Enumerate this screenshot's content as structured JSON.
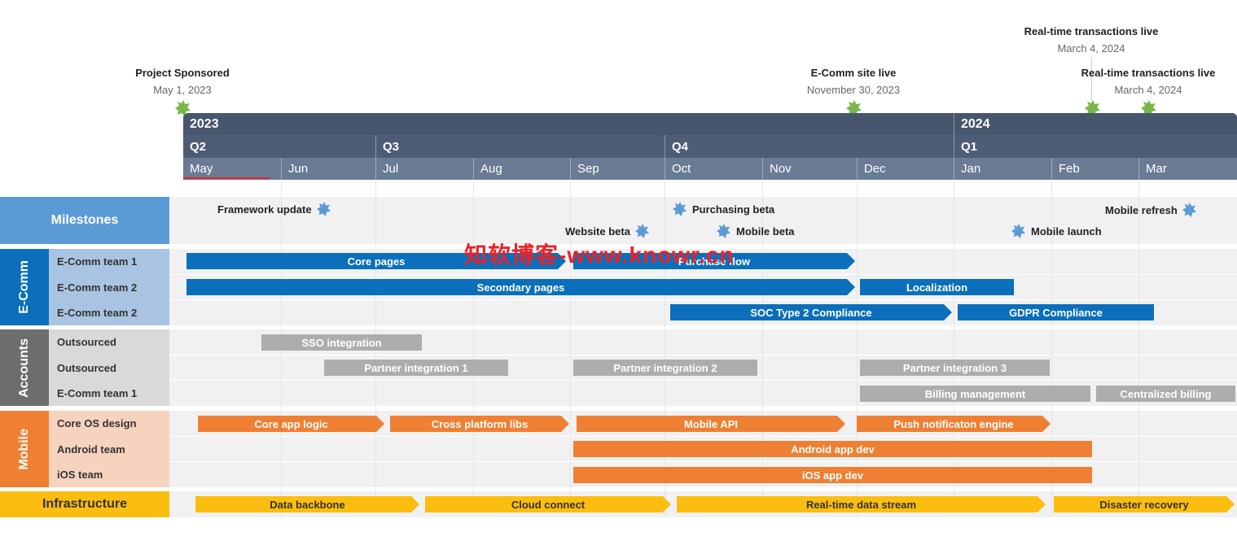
{
  "top_milestones": [
    {
      "title": "Project Sponsored",
      "date": "May 1, 2023"
    },
    {
      "title": "E-Comm site live",
      "date": "November 30, 2023"
    },
    {
      "title": "Real-time transactions live",
      "date": "March 4, 2024"
    },
    {
      "title": "Real-time transactions live",
      "date": "March 4, 2024"
    }
  ],
  "header": {
    "years": [
      "2023",
      "2024"
    ],
    "quarters": [
      "Q2",
      "Q3",
      "Q4",
      "Q1"
    ],
    "months": [
      "May",
      "Jun",
      "Jul",
      "Aug",
      "Sep",
      "Oct",
      "Nov",
      "Dec",
      "Jan",
      "Feb",
      "Mar"
    ]
  },
  "groups": {
    "milestones": "Milestones",
    "ecomm": "E-Comm",
    "accounts": "Accounts",
    "mobile": "Mobile",
    "infrastructure": "Infrastructure"
  },
  "milestone_items": [
    "Framework update",
    "Purchasing beta",
    "Website beta",
    "Mobile beta",
    "Mobile refresh",
    "Mobile launch"
  ],
  "row_labels": {
    "ecomm": [
      "E-Comm team 1",
      "E-Comm team 2",
      "E-Comm team 2"
    ],
    "accounts": [
      "Outsourced",
      "Outsourced",
      "E-Comm team 1"
    ],
    "mobile": [
      "Core OS design",
      "Android team",
      "iOS team"
    ]
  },
  "bars": {
    "ecomm": [
      "Core pages",
      "Purchase flow",
      "Secondary pages",
      "Localization",
      "SOC Type 2 Compliance",
      "GDPR Compliance"
    ],
    "accounts": [
      "SSO integration",
      "Partner integration 1",
      "Partner integration 2",
      "Partner integration 3",
      "Billing management",
      "Centralized billing"
    ],
    "mobile": [
      "Core app logic",
      "Cross platform libs",
      "Mobile API",
      "Push notificaton engine",
      "Android app dev",
      "iOS app dev"
    ],
    "infrastructure": [
      "Data backbone",
      "Cloud connect",
      "Real-time data stream",
      "Disaster recovery"
    ]
  },
  "watermark": "知软博客-www.knowr.cn",
  "colors": {
    "blue": "#0b6fbb",
    "gray": "#adadad",
    "orange": "#ef7f33",
    "yellow": "#fbbd10",
    "milestone_green": "#7ab648",
    "milestone_blue": "#5b9bd5",
    "header_dark": "#47566d"
  }
}
